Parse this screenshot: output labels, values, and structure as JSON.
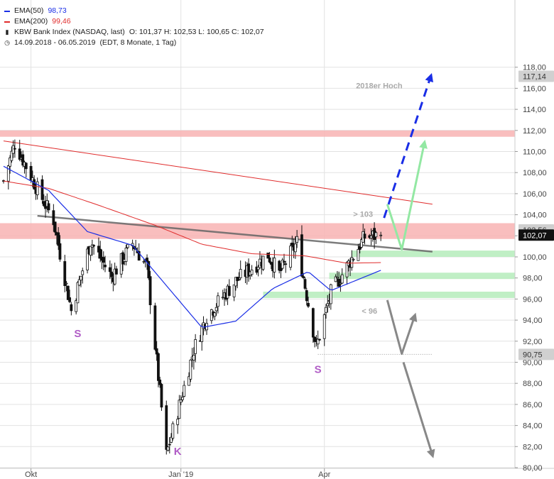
{
  "legend": {
    "ema50": {
      "label": "EMA(50)",
      "value": "98,73",
      "color": "#1a2ee6"
    },
    "ema200": {
      "label": "EMA(200)",
      "value": "99,46",
      "color": "#e02b2b"
    },
    "instrument": "KBW Bank Index (NASDAQ, last)",
    "ohlc": "O: 101,37  H: 102,53  L: 100,65  C: 102,07",
    "range": "14.09.2018 - 06.05.2019",
    "meta": "(EDT, 8 Monate, 1 Tag)",
    "icons": [
      "bar-chart-icon",
      "clock-icon"
    ]
  },
  "chart_data": {
    "type": "candlestick",
    "instrument": "KBW Bank Index (NASDAQ, last)",
    "period": "14.09.2018 - 06.05.2019",
    "ylim": [
      80,
      118.5
    ],
    "y_ticks": [
      "80,00",
      "82,00",
      "84,00",
      "86,00",
      "88,00",
      "90,00",
      "92,00",
      "94,00",
      "96,00",
      "98,00",
      "100,00",
      "102,00",
      "104,00",
      "106,00",
      "108,00",
      "110,00",
      "112,00",
      "114,00",
      "116,00",
      "118,00"
    ],
    "x_ticks": [
      {
        "label": "Okt",
        "date": "2018-10-01"
      },
      {
        "label": "Jan '19",
        "date": "2019-01-02"
      },
      {
        "label": "Apr",
        "date": "2019-04-01"
      }
    ],
    "start_date": "2018-09-14",
    "end_date": "2019-05-06",
    "last_price": {
      "label": "102,07",
      "value": 102.07
    },
    "price_labels": [
      {
        "label": "117,14",
        "value": 117.14
      },
      {
        "label": "90,75",
        "value": 90.75
      },
      {
        "label": "102,56",
        "value": 102.56
      }
    ],
    "key_points": [
      {
        "date": "2018-09-14",
        "value": 107.2
      },
      {
        "date": "2018-09-21",
        "value": 110.8
      },
      {
        "date": "2018-10-05",
        "value": 106.4
      },
      {
        "date": "2018-10-15",
        "value": 103.5
      },
      {
        "date": "2018-10-26",
        "value": 94.9
      },
      {
        "date": "2018-11-07",
        "value": 101.5
      },
      {
        "date": "2018-11-20",
        "value": 98.1
      },
      {
        "date": "2018-12-03",
        "value": 101.3
      },
      {
        "date": "2018-12-12",
        "value": 99.0
      },
      {
        "date": "2018-12-24",
        "value": 81.2
      },
      {
        "date": "2019-01-10",
        "value": 91.2
      },
      {
        "date": "2019-01-18",
        "value": 94.4
      },
      {
        "date": "2019-02-05",
        "value": 97.7
      },
      {
        "date": "2019-02-25",
        "value": 100.2
      },
      {
        "date": "2019-03-04",
        "value": 98.4
      },
      {
        "date": "2019-03-15",
        "value": 101.4
      },
      {
        "date": "2019-03-27",
        "value": 91.4
      },
      {
        "date": "2019-04-05",
        "value": 96.6
      },
      {
        "date": "2019-04-17",
        "value": 99.6
      },
      {
        "date": "2019-04-26",
        "value": 101.9
      },
      {
        "date": "2019-05-06",
        "value": 102.07
      }
    ],
    "ema50_points": [
      {
        "date": "2018-09-14",
        "value": 108.6
      },
      {
        "date": "2018-10-12",
        "value": 106.3
      },
      {
        "date": "2018-11-05",
        "value": 102.4
      },
      {
        "date": "2018-12-03",
        "value": 101.1
      },
      {
        "date": "2018-12-20",
        "value": 98.0
      },
      {
        "date": "2019-01-15",
        "value": 93.3
      },
      {
        "date": "2019-02-05",
        "value": 93.9
      },
      {
        "date": "2019-02-28",
        "value": 97.0
      },
      {
        "date": "2019-03-22",
        "value": 98.6
      },
      {
        "date": "2019-04-05",
        "value": 96.8
      },
      {
        "date": "2019-05-06",
        "value": 98.73
      }
    ],
    "ema200_points": [
      {
        "date": "2018-09-14",
        "value": 107.2
      },
      {
        "date": "2018-10-12",
        "value": 106.5
      },
      {
        "date": "2018-11-12",
        "value": 104.9
      },
      {
        "date": "2018-12-17",
        "value": 103.0
      },
      {
        "date": "2019-01-15",
        "value": 101.2
      },
      {
        "date": "2019-02-15",
        "value": 100.3
      },
      {
        "date": "2019-03-20",
        "value": 100.1
      },
      {
        "date": "2019-04-15",
        "value": 99.4
      },
      {
        "date": "2019-05-06",
        "value": 99.46
      }
    ],
    "resistance_zones": [
      {
        "from": 111.4,
        "to": 112.0
      },
      {
        "from": 101.7,
        "to": 103.2
      }
    ],
    "support_zones": [
      {
        "from": 100.0,
        "to": 100.6,
        "start_date": "2019-04-18"
      },
      {
        "from": 97.9,
        "to": 98.5,
        "start_date": "2019-04-04"
      },
      {
        "from": 96.1,
        "to": 96.7,
        "start_date": "2019-02-22"
      }
    ],
    "lines": [
      {
        "name": "descending-resistance",
        "color": "#e02b2b",
        "from": {
          "date": "2018-09-14",
          "value": 111.0
        },
        "to": {
          "date": "2019-06-07",
          "value": 105.0
        }
      },
      {
        "name": "neckline",
        "color": "#666666",
        "from": {
          "date": "2018-10-05",
          "value": 103.9
        },
        "to": {
          "date": "2019-06-07",
          "value": 100.5
        }
      },
      {
        "name": "dotted-level",
        "color": "#999999",
        "from": {
          "date": "2019-03-28",
          "value": 90.75
        },
        "to": {
          "date": "2019-06-07",
          "value": 90.75
        }
      }
    ],
    "scenario_arrows": [
      {
        "name": "blue-dashed-up",
        "color": "#1a2ee6",
        "points": [
          {
            "date": "2019-05-08",
            "value": 103.7
          },
          {
            "date": "2019-06-06",
            "value": 117.14
          }
        ]
      },
      {
        "name": "green-up",
        "color": "#93e8a3",
        "points": [
          {
            "date": "2019-05-10",
            "value": 105.0
          },
          {
            "date": "2019-05-19",
            "value": 100.7
          },
          {
            "date": "2019-06-02",
            "value": 110.8
          }
        ]
      },
      {
        "name": "grey-down-up",
        "color": "#888888",
        "points": [
          {
            "date": "2019-05-10",
            "value": 95.9
          },
          {
            "date": "2019-05-19",
            "value": 90.8
          },
          {
            "date": "2019-05-27",
            "value": 94.4
          }
        ]
      },
      {
        "name": "grey-down",
        "color": "#888888",
        "points": [
          {
            "date": "2019-05-20",
            "value": 90.0
          },
          {
            "date": "2019-06-07",
            "value": 81.2
          }
        ]
      }
    ],
    "annotations": [
      {
        "text": "2018er Hoch",
        "date": "2019-05-05",
        "value": 116.0,
        "color": "#aaaaaa",
        "size": 11
      },
      {
        "text": "> 103",
        "date": "2019-04-25",
        "value": 103.8,
        "color": "#aaaaaa",
        "size": 11
      },
      {
        "text": "< 96",
        "date": "2019-04-29",
        "value": 94.6,
        "color": "#aaaaaa",
        "size": 11
      },
      {
        "text": "S",
        "date": "2018-10-30",
        "value": 92.4,
        "color": "#b05cc6",
        "size": 15
      },
      {
        "text": "K",
        "date": "2018-12-31",
        "value": 81.2,
        "color": "#b05cc6",
        "size": 15
      },
      {
        "text": "S",
        "date": "2019-03-28",
        "value": 89.0,
        "color": "#b05cc6",
        "size": 15
      }
    ],
    "colors": {
      "up": "#111111",
      "down": "#111111",
      "ema50": "#1a2ee6",
      "ema200": "#e02b2b",
      "resistance": "#f8b3b3",
      "support": "#b9edbf",
      "grid": "#e2e2e2"
    }
  }
}
